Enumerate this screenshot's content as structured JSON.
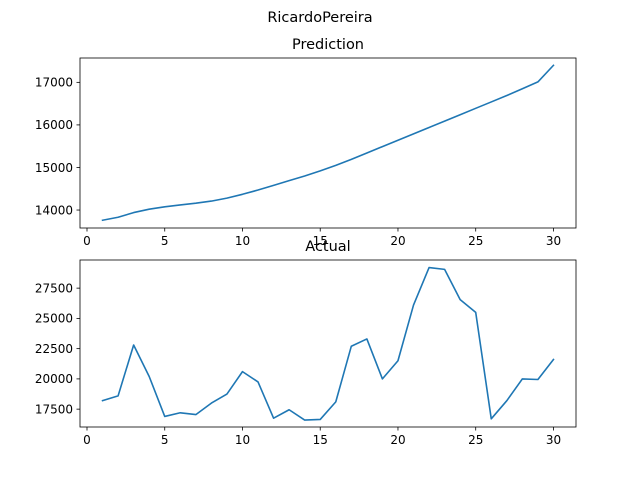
{
  "figure": {
    "suptitle": "RicardoPereira"
  },
  "colors": {
    "series": "#1f77b4",
    "axes": "#000000",
    "background": "#ffffff"
  },
  "chart_data": [
    {
      "type": "line",
      "title": "Prediction",
      "xlabel": "",
      "ylabel": "",
      "grid": false,
      "xlim": [
        -0.45,
        31.45
      ],
      "ylim": [
        13578,
        17572
      ],
      "xticks": [
        0,
        5,
        10,
        15,
        20,
        25,
        30
      ],
      "yticks": [
        14000,
        15000,
        16000,
        17000
      ],
      "series": [
        {
          "x": [
            1,
            2,
            3,
            4,
            5,
            6,
            7,
            8,
            9,
            10,
            11,
            12,
            13,
            14,
            15,
            16,
            17,
            18,
            19,
            20,
            21,
            22,
            23,
            24,
            25,
            26,
            27,
            28,
            29,
            30
          ],
          "values": [
            13760,
            13830,
            13940,
            14020,
            14075,
            14120,
            14160,
            14210,
            14280,
            14370,
            14470,
            14580,
            14690,
            14800,
            14920,
            15050,
            15190,
            15340,
            15490,
            15640,
            15790,
            15940,
            16090,
            16240,
            16390,
            16540,
            16690,
            16850,
            17010,
            17400
          ]
        }
      ]
    },
    {
      "type": "line",
      "title": "Actual",
      "xlabel": "",
      "ylabel": "",
      "grid": false,
      "xlim": [
        -0.45,
        31.45
      ],
      "ylim": [
        16025,
        29825
      ],
      "xticks": [
        0,
        5,
        10,
        15,
        20,
        25,
        30
      ],
      "yticks": [
        17500,
        20000,
        22500,
        25000,
        27500
      ],
      "series": [
        {
          "x": [
            1,
            2,
            3,
            4,
            5,
            6,
            7,
            8,
            9,
            10,
            11,
            12,
            13,
            14,
            15,
            16,
            17,
            18,
            19,
            20,
            21,
            22,
            23,
            24,
            25,
            26,
            27,
            28,
            29,
            30
          ],
          "values": [
            18200,
            18600,
            22800,
            20200,
            16900,
            17200,
            17050,
            18000,
            18750,
            20600,
            19750,
            16750,
            17450,
            16600,
            16650,
            18100,
            22700,
            23300,
            20000,
            21500,
            26100,
            29200,
            29050,
            26550,
            25500,
            16700,
            18200,
            20000,
            19950,
            21600
          ]
        }
      ]
    }
  ]
}
